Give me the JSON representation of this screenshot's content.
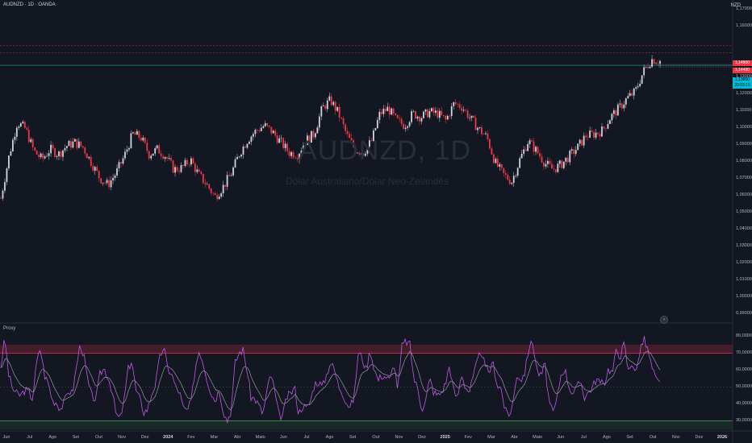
{
  "header": {
    "symbol_title": "AUDNZD · 1D · OANDA",
    "currency": "NZD"
  },
  "watermark": {
    "symbol": "AUDNZD, 1D",
    "description": "Dólar Australiano/Dólar Neo-Zelandês"
  },
  "indicator": {
    "title": "Proxy"
  },
  "price_axis": {
    "labels": [
      "1,17000",
      "1,16000",
      "1,13000",
      "1,12000",
      "1,11000",
      "1,10000",
      "1,09000",
      "1,08000",
      "1,07000",
      "1,06000",
      "1,05000",
      "1,04000",
      "1,03000",
      "1,02000",
      "1,01000",
      "1,00000",
      "0,99000"
    ]
  },
  "price_tags": {
    "resistance_upper": "1,14800",
    "resistance_lower": "1,14400",
    "current": "1,13850",
    "countdown": "20:03:15"
  },
  "indicator_axis": {
    "labels": [
      "80,00000",
      "70,00000",
      "60,00000",
      "50,00000",
      "40,00000",
      "30,00000"
    ]
  },
  "time_axis": {
    "labels": [
      "Jun",
      "Jul",
      "Ago",
      "Set",
      "Out",
      "Nov",
      "Dez",
      "2024",
      "Fev",
      "Mar",
      "Abr",
      "Maio",
      "Jun",
      "Jul",
      "Ago",
      "Set",
      "Out",
      "Nov",
      "Dez",
      "2025",
      "Fev",
      "Mar",
      "Abr",
      "Maio",
      "Jun",
      "Jul",
      "Ago",
      "Set",
      "Out",
      "Nov",
      "Dez",
      "2026"
    ]
  },
  "colors": {
    "background": "#131722",
    "up": "#d1d4dc",
    "down": "#f23645",
    "oscillator": "#c05be6",
    "signal": "#d1d4dc",
    "overbought_zone": "#f23645",
    "oversold_zone": "#4caf50",
    "support_line": "#26a69a"
  },
  "scroll_button": {
    "icon": "scroll-to-realtime-icon",
    "glyph": "»"
  },
  "chart_data": {
    "type": "candlestick",
    "y_axis_range": [
      0.985,
      1.175
    ],
    "x_range": [
      "2023-06",
      "2026-01"
    ],
    "price_path": [
      1.058,
      1.083,
      1.103,
      1.099,
      1.086,
      1.081,
      1.087,
      1.084,
      1.089,
      1.091,
      1.088,
      1.079,
      1.07,
      1.066,
      1.073,
      1.083,
      1.096,
      1.094,
      1.084,
      1.087,
      1.083,
      1.075,
      1.076,
      1.081,
      1.072,
      1.066,
      1.059,
      1.065,
      1.073,
      1.085,
      1.093,
      1.098,
      1.101,
      1.097,
      1.091,
      1.085,
      1.084,
      1.092,
      1.096,
      1.111,
      1.116,
      1.108,
      1.095,
      1.087,
      1.085,
      1.092,
      1.108,
      1.111,
      1.104,
      1.101,
      1.108,
      1.106,
      1.109,
      1.108,
      1.104,
      1.114,
      1.112,
      1.105,
      1.099,
      1.094,
      1.079,
      1.072,
      1.068,
      1.081,
      1.092,
      1.086,
      1.079,
      1.075,
      1.078,
      1.083,
      1.088,
      1.095,
      1.096,
      1.098,
      1.106,
      1.111,
      1.117,
      1.121,
      1.133,
      1.14,
      1.139
    ],
    "levels": {
      "resistance_upper": 1.148,
      "resistance_lower": 1.144,
      "support": 1.1365
    },
    "indicator": {
      "name": "Proxy",
      "y_axis_range": [
        25,
        83
      ],
      "overbought": [
        70,
        75
      ],
      "oversold": [
        25,
        30
      ],
      "mid": 50,
      "path": [
        62,
        79,
        57,
        49,
        46,
        45,
        48,
        47,
        43,
        64,
        73,
        57,
        52,
        42,
        41,
        37,
        41,
        48,
        46,
        61,
        76,
        67,
        52,
        44,
        43,
        58,
        61,
        56,
        48,
        34,
        31,
        41,
        60,
        66,
        48,
        43,
        35,
        37,
        46,
        52,
        67,
        74,
        61,
        58,
        50,
        47,
        37,
        36,
        42,
        62,
        72,
        64,
        54,
        46,
        42,
        49,
        36,
        30,
        36,
        64,
        70,
        72,
        60,
        44,
        43,
        39,
        34,
        47,
        58,
        47,
        33,
        33,
        44,
        46,
        50,
        34,
        39,
        37,
        42,
        52,
        53,
        50,
        57,
        65,
        60,
        51,
        47,
        41,
        38,
        44,
        71,
        67,
        60,
        72,
        61,
        54,
        57,
        56,
        54,
        64,
        48,
        74,
        77,
        75,
        55,
        49,
        37,
        42,
        55,
        47,
        45,
        47,
        52,
        63,
        48,
        43,
        58,
        50,
        47,
        56,
        65,
        72,
        61,
        59,
        64,
        51,
        49,
        36,
        33,
        41,
        58,
        54,
        59,
        74,
        76,
        60,
        56,
        64,
        42,
        34,
        42,
        57,
        61,
        51,
        46,
        49,
        54,
        44,
        47,
        50,
        55,
        52,
        52,
        61,
        58,
        72,
        68,
        76,
        59,
        65,
        58,
        73,
        78,
        71,
        61,
        54,
        52
      ]
    }
  }
}
